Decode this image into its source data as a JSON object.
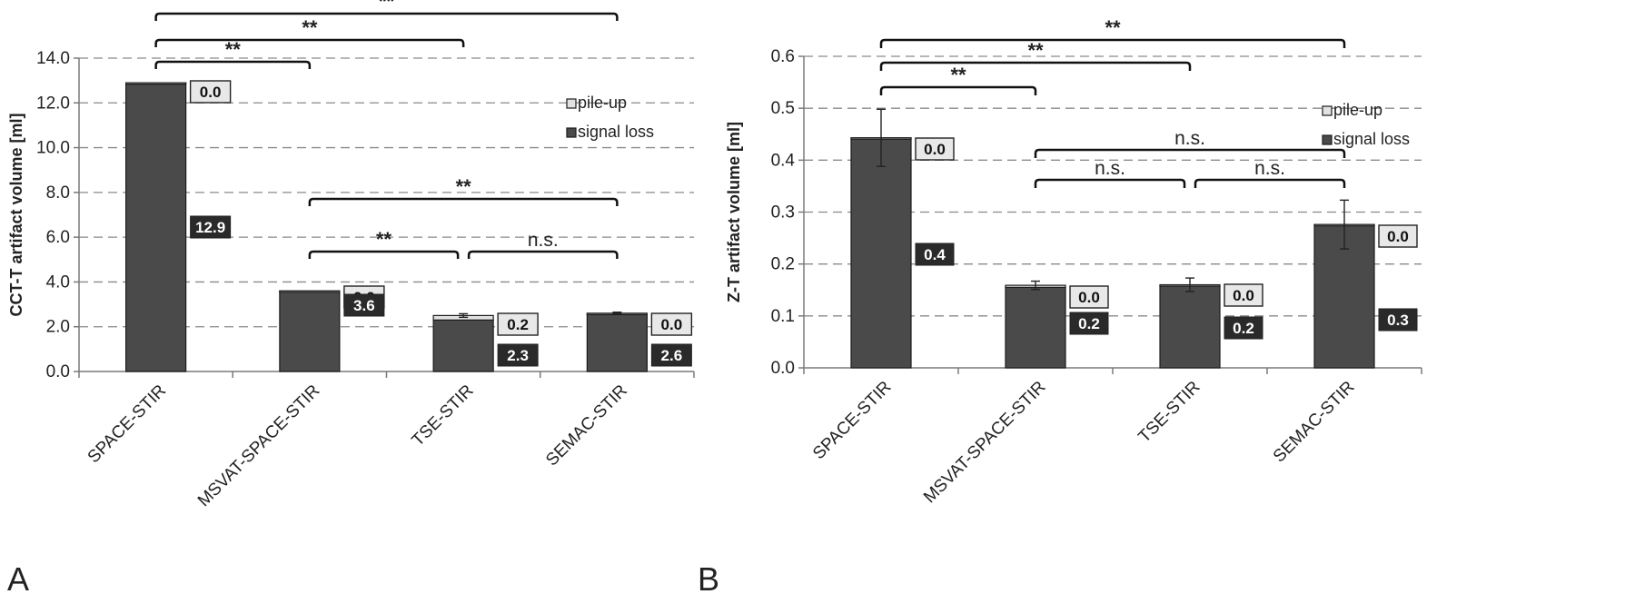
{
  "chart_data": [
    {
      "panel": "A",
      "type": "bar",
      "stacked": true,
      "ylabel": "CCT-T  artifact  volume  [ml]",
      "ylim": [
        0,
        14
      ],
      "yticks": [
        "0.0",
        "2.0",
        "4.0",
        "6.0",
        "8.0",
        "10.0",
        "12.0",
        "14.0"
      ],
      "grid": true,
      "legend_position": "top-right",
      "categories": [
        "SPACE-STIR",
        "MSVAT-SPACE-STIR",
        "TSE-STIR",
        "SEMAC-STIR"
      ],
      "series": [
        {
          "name": "signal loss",
          "values": [
            12.9,
            3.6,
            2.3,
            2.6
          ],
          "labels": [
            "12.9",
            "3.6",
            "2.3",
            "2.6"
          ],
          "color": "#4a4a4a"
        },
        {
          "name": "pile-up",
          "values": [
            0.0,
            0.0,
            0.2,
            0.0
          ],
          "labels": [
            "0.0",
            "0.0",
            "0.2",
            "0.0"
          ],
          "color": "#e2e2e2"
        }
      ],
      "error": [
        null,
        null,
        0.08,
        0.05
      ],
      "significance": [
        {
          "from": 0,
          "to": 3,
          "label": "**"
        },
        {
          "from": 0,
          "to": 2,
          "label": "**"
        },
        {
          "from": 0,
          "to": 1,
          "label": "**"
        },
        {
          "from": 1,
          "to": 3,
          "label": "**"
        },
        {
          "from": 1,
          "to": 2,
          "label": "**"
        },
        {
          "from": 2,
          "to": 3,
          "label": "n.s."
        }
      ]
    },
    {
      "panel": "B",
      "type": "bar",
      "stacked": true,
      "ylabel": "Z-T  artifact  volume  [ml]",
      "ylim": [
        0,
        0.6
      ],
      "yticks": [
        "0.0",
        "0.1",
        "0.2",
        "0.3",
        "0.4",
        "0.5",
        "0.6"
      ],
      "grid": true,
      "legend_position": "top-right",
      "categories": [
        "SPACE-STIR",
        "MSVAT-SPACE-STIR",
        "TSE-STIR",
        "SEMAC-STIR"
      ],
      "series": [
        {
          "name": "signal loss",
          "values": [
            0.443,
            0.155,
            0.158,
            0.276
          ],
          "labels": [
            "0.4",
            "0.2",
            "0.2",
            "0.3"
          ],
          "color": "#4a4a4a"
        },
        {
          "name": "pile-up",
          "values": [
            0.0,
            0.004,
            0.002,
            0.0
          ],
          "labels": [
            "0.0",
            "0.0",
            "0.0",
            "0.0"
          ],
          "color": "#e2e2e2"
        }
      ],
      "error": [
        0.055,
        0.008,
        0.013,
        0.047
      ],
      "significance": [
        {
          "from": 0,
          "to": 3,
          "label": "**"
        },
        {
          "from": 0,
          "to": 2,
          "label": "**"
        },
        {
          "from": 0,
          "to": 1,
          "label": "**"
        },
        {
          "from": 1,
          "to": 3,
          "label": "n.s."
        },
        {
          "from": 1,
          "to": 2,
          "label": "n.s."
        },
        {
          "from": 2,
          "to": 3,
          "label": "n.s."
        }
      ]
    }
  ]
}
